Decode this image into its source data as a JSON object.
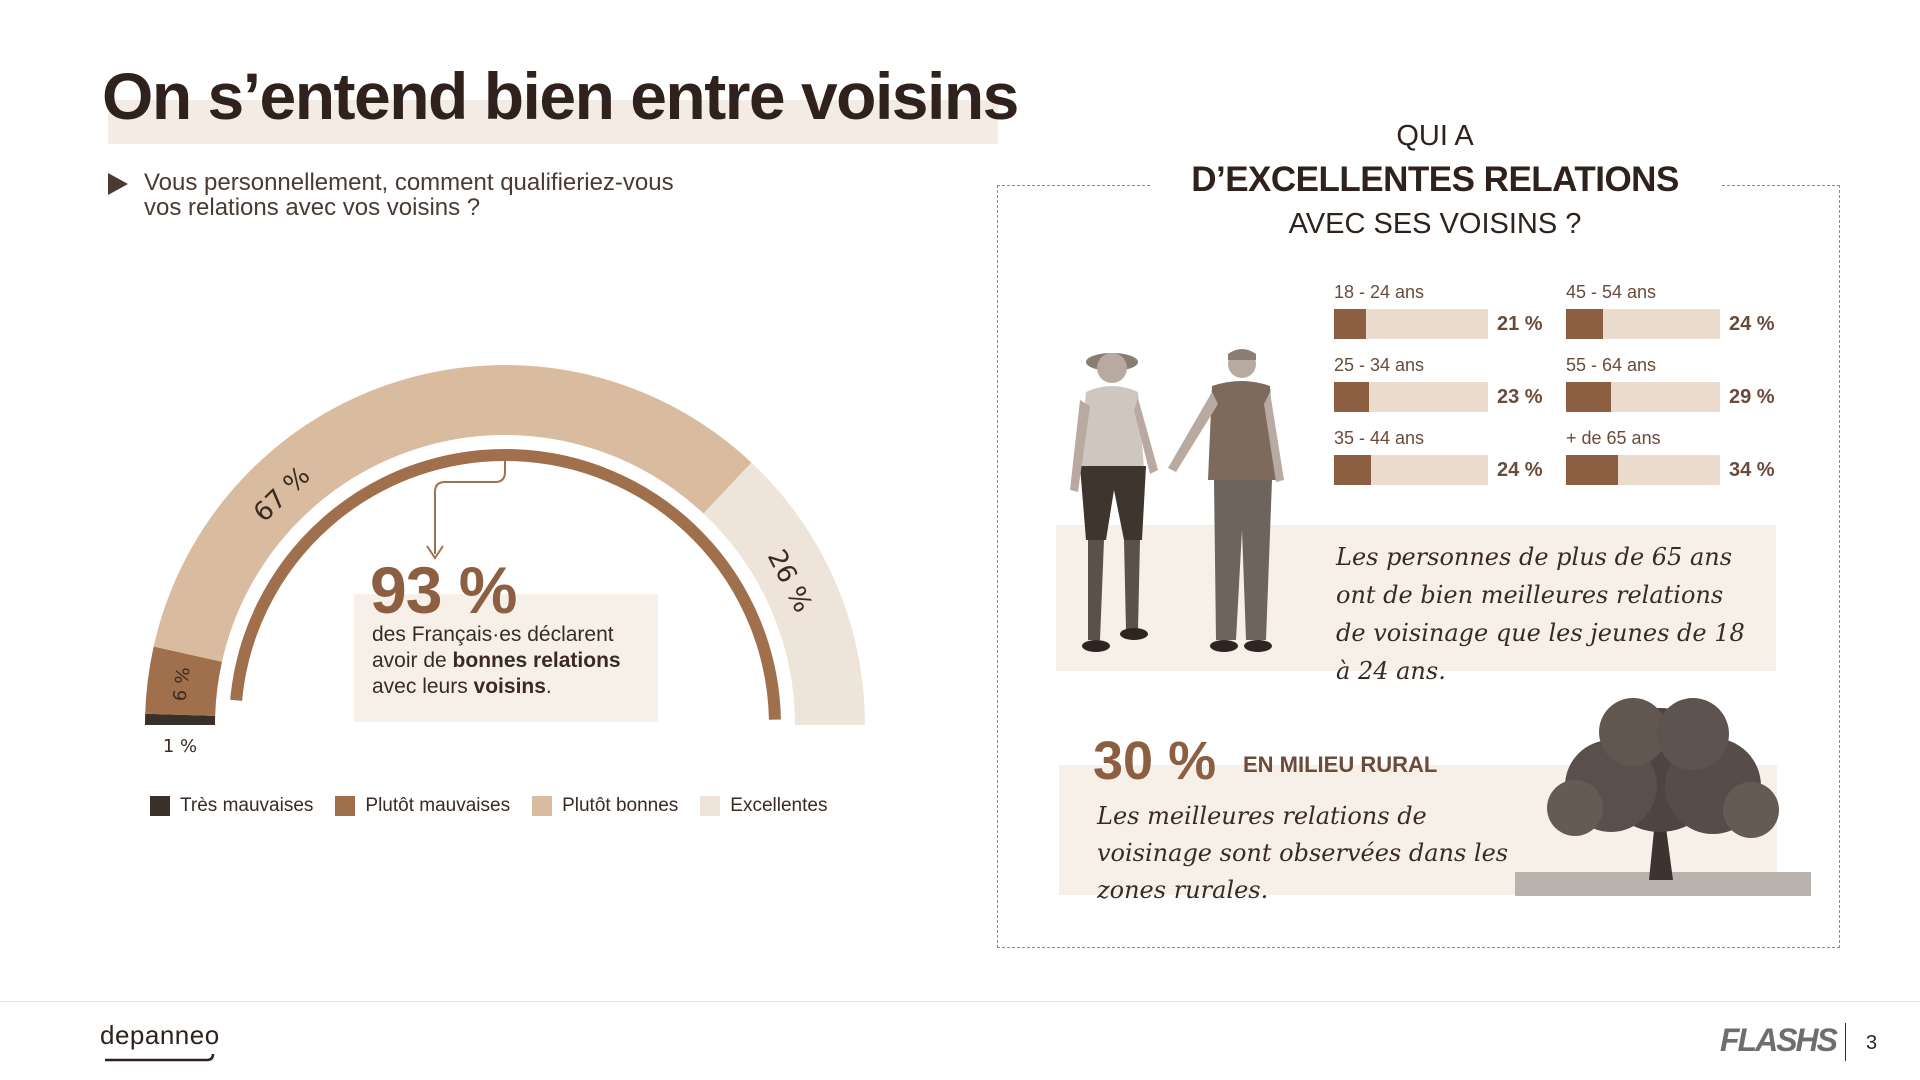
{
  "title": "On s’entend bien entre voisins",
  "question": "Vous personnellement, comment qualifieriez-vous vos relations avec vos voisins ?",
  "callout": {
    "value": "93 %",
    "line1": "des Français·es déclarent",
    "line2_pre": "avoir de ",
    "line2_bold": "bonnes relations",
    "line3_pre": "avec leurs ",
    "line3_bold": "voisins",
    "line3_post": "."
  },
  "legend": [
    {
      "label": "Très mauvaises",
      "color": "#3b2f2a"
    },
    {
      "label": "Plutôt mauvaises",
      "color": "#a0704d"
    },
    {
      "label": "Plutôt bonnes",
      "color": "#d9bc9f"
    },
    {
      "label": "Excellentes",
      "color": "#efe4d9"
    }
  ],
  "chart_data": [
    {
      "type": "pie",
      "subtype": "semi-donut",
      "categories": [
        "Très mauvaises",
        "Plutôt mauvaises",
        "Plutôt bonnes",
        "Excellentes"
      ],
      "values": [
        1,
        6,
        67,
        26
      ],
      "labels": [
        "1 %",
        "6 %",
        "67 %",
        "26 %"
      ],
      "colors": [
        "#3b2f2a",
        "#a0704d",
        "#d9bc9f",
        "#efe4d9"
      ],
      "annotation_arc_value": 93
    },
    {
      "type": "bar",
      "orientation": "horizontal",
      "categories": [
        "18 - 24 ans",
        "25 - 34 ans",
        "35 - 44 ans",
        "45 - 54 ans",
        "55 - 64 ans",
        "+ de 65 ans"
      ],
      "values": [
        21,
        23,
        24,
        24,
        29,
        34
      ],
      "labels": [
        "21 %",
        "23 %",
        "24 %",
        "24 %",
        "29 %",
        "34 %"
      ]
    }
  ],
  "panel": {
    "title_line1": "QUI A",
    "title_line2": "D’EXCELLENTES RELATIONS",
    "title_line3": "AVEC SES VOISINS ?",
    "insight": "Les personnes de plus de 65 ans ont de bien meilleures relations de voisinage que les jeunes de 18 à 24 ans.",
    "rural_value": "30 %",
    "rural_label": "EN MILIEU RURAL",
    "rural_text": "Les meilleures relations de voisinage sont observées dans les zones rurales."
  },
  "footer": {
    "brand": "depanneo",
    "logo": "FLASHS",
    "page": "3"
  }
}
